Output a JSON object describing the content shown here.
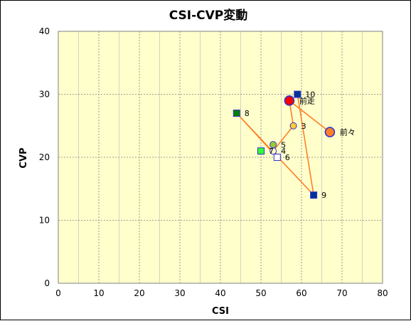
{
  "chart_data": {
    "type": "scatter",
    "title": "CSI-CVP変動",
    "xlabel": "CSI",
    "ylabel": "CVP",
    "xlim": [
      0,
      80
    ],
    "ylim": [
      0,
      40
    ],
    "xticks": [
      0,
      10,
      20,
      30,
      40,
      50,
      60,
      70,
      80
    ],
    "yticks": [
      0,
      10,
      20,
      30,
      40
    ],
    "minor_x_step": 5,
    "grid": true,
    "legend": "none",
    "plot_background": "#ffffcc",
    "line_color": "#ff7f27",
    "path_order": [
      "前々",
      "前走",
      "3",
      "4",
      "5",
      "6",
      "8",
      "9",
      "10"
    ],
    "points": [
      {
        "label": "前々",
        "x": 67,
        "y": 24,
        "marker": "circle",
        "size": "large",
        "fill": "#ff7f27",
        "stroke": "#3333cc"
      },
      {
        "label": "前走",
        "x": 57,
        "y": 29,
        "marker": "circle",
        "size": "large",
        "fill": "#ff0000",
        "stroke": "#3333cc"
      },
      {
        "label": "3",
        "x": 58,
        "y": 25,
        "marker": "circle",
        "size": "small",
        "fill": "#ffcc33",
        "stroke": "#3333cc"
      },
      {
        "label": "4",
        "x": 53,
        "y": 21,
        "marker": "circle",
        "size": "small",
        "fill": "#ffffcc",
        "stroke": "#3333cc"
      },
      {
        "label": "5",
        "x": 53,
        "y": 22,
        "marker": "circle",
        "size": "small",
        "fill": "#99cc33",
        "stroke": "#3333cc"
      },
      {
        "label": "6",
        "x": 54,
        "y": 20,
        "marker": "square",
        "size": "small",
        "fill": "#ffffff",
        "stroke": "#3333cc"
      },
      {
        "label": "7",
        "x": 50,
        "y": 21,
        "marker": "square",
        "size": "small",
        "fill": "#33ff33",
        "stroke": "#3333cc"
      },
      {
        "label": "8",
        "x": 44,
        "y": 27,
        "marker": "square",
        "size": "small",
        "fill": "#008000",
        "stroke": "#3333cc"
      },
      {
        "label": "9",
        "x": 63,
        "y": 14,
        "marker": "square",
        "size": "small",
        "fill": "#003399",
        "stroke": "#3333cc"
      },
      {
        "label": "10",
        "x": 59,
        "y": 30,
        "marker": "square",
        "size": "small",
        "fill": "#003399",
        "stroke": "#3333cc"
      }
    ]
  }
}
